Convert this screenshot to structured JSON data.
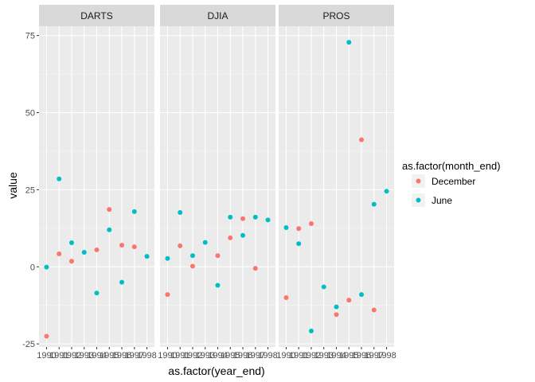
{
  "chart_data": {
    "type": "scatter",
    "xlabel": "as.factor(year_end)",
    "ylabel": "value",
    "categories": [
      "1990",
      "1991",
      "1992",
      "1993",
      "1994",
      "1995",
      "1996",
      "1997",
      "1998"
    ],
    "ylim": [
      -26,
      78
    ],
    "yticks": [
      -25,
      0,
      25,
      50,
      75
    ],
    "grid": true,
    "legend": {
      "title": "as.factor(month_end)",
      "position": "right"
    },
    "colors": {
      "December": "#F8766D",
      "June": "#00BFC4"
    },
    "panels": [
      {
        "label": "DARTS",
        "series": [
          {
            "name": "December",
            "values": [
              -22.5,
              4.2,
              1.8,
              null,
              5.5,
              18.6,
              7.0,
              6.5,
              null
            ]
          },
          {
            "name": "June",
            "values": [
              -0.1,
              28.5,
              7.8,
              4.7,
              -8.5,
              12.0,
              -5.0,
              17.9,
              3.4
            ]
          }
        ]
      },
      {
        "label": "DJIA",
        "series": [
          {
            "name": "December",
            "values": [
              -9.0,
              6.8,
              0.2,
              null,
              3.6,
              9.4,
              15.6,
              -0.5,
              null
            ]
          },
          {
            "name": "June",
            "values": [
              2.7,
              17.6,
              3.6,
              7.9,
              -6.0,
              16.1,
              10.2,
              16.1,
              15.2
            ]
          }
        ]
      },
      {
        "label": "PROS",
        "series": [
          {
            "name": "December",
            "values": [
              -10.0,
              12.4,
              14.0,
              null,
              -15.5,
              -10.8,
              41.2,
              -14.0,
              null
            ]
          },
          {
            "name": "June",
            "values": [
              12.7,
              7.5,
              -20.8,
              -6.5,
              -13.0,
              72.8,
              -9.0,
              20.3,
              24.5
            ]
          }
        ]
      }
    ]
  }
}
